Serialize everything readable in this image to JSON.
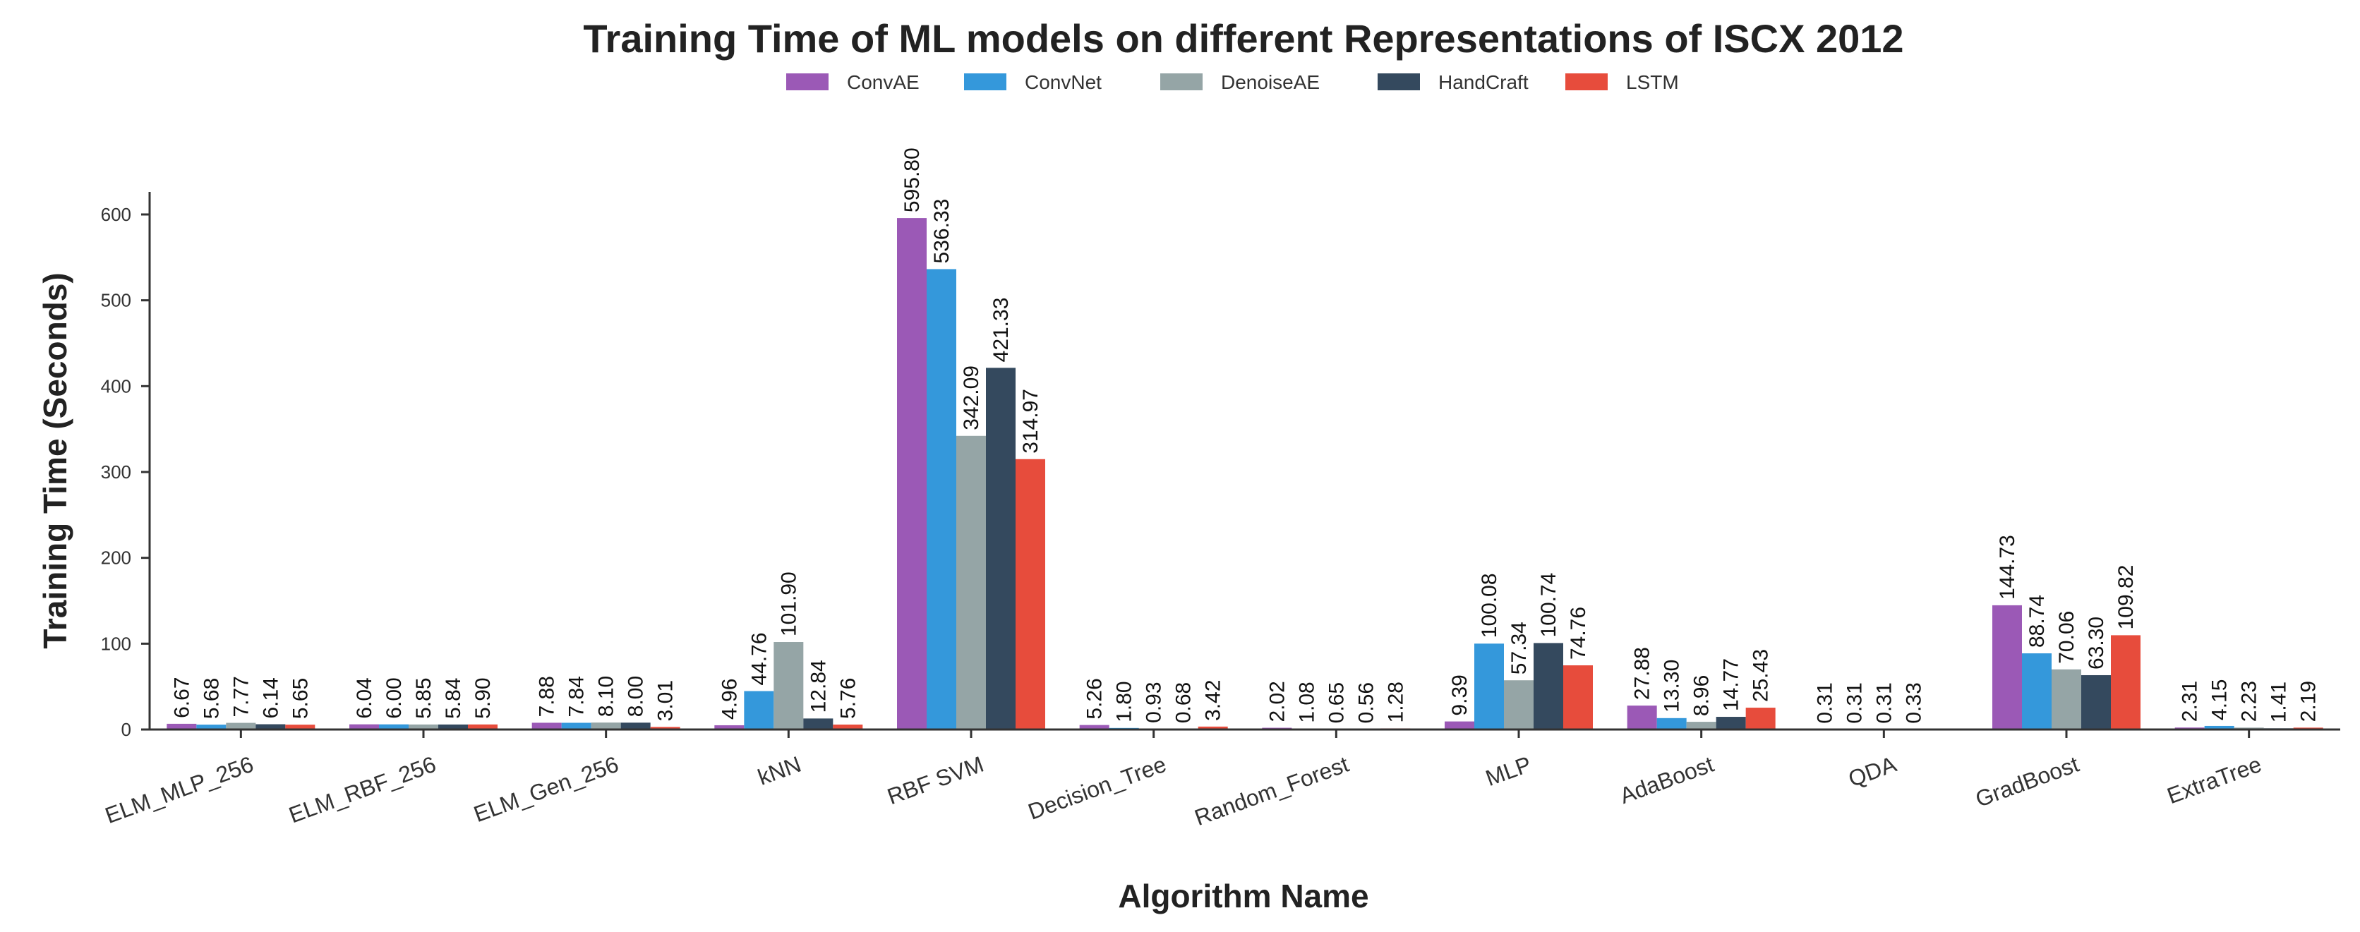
{
  "chart_data": {
    "type": "bar",
    "title": "Training Time of ML models on different Representations of ISCX 2012",
    "xlabel": "Algorithm Name",
    "ylabel": "Training Time (Seconds)",
    "ylim": [
      0,
      625
    ],
    "yticks": [
      0,
      100,
      200,
      300,
      400,
      500,
      600
    ],
    "legend_position": "top-center",
    "categories": [
      "ELM_MLP_256",
      "ELM_RBF_256",
      "ELM_Gen_256",
      "kNN",
      "RBF SVM",
      "Decision_Tree",
      "Random_Forest",
      "MLP",
      "AdaBoost",
      "QDA",
      "GradBoost",
      "ExtraTree"
    ],
    "series": [
      {
        "name": "ConvAE",
        "color": "#9b59b6",
        "values": [
          6.67,
          6.04,
          7.88,
          4.96,
          595.8,
          5.26,
          2.02,
          9.39,
          27.88,
          0.31,
          144.73,
          2.31
        ],
        "labels": [
          "6.67",
          "6.04",
          "7.88",
          "4.96",
          "595.80",
          "5.26",
          "2.02",
          "9.39",
          "27.88",
          "0.31",
          "144.73",
          "2.31"
        ]
      },
      {
        "name": "ConvNet",
        "color": "#3498db",
        "values": [
          5.68,
          6.0,
          7.84,
          44.76,
          536.33,
          1.8,
          1.08,
          100.08,
          13.3,
          0.31,
          88.74,
          4.15
        ],
        "labels": [
          "5.68",
          "6.00",
          "7.84",
          "44.76",
          "536.33",
          "1.80",
          "1.08",
          "100.08",
          "13.30",
          "0.31",
          "88.74",
          "4.15"
        ]
      },
      {
        "name": "DenoiseAE",
        "color": "#95a5a6",
        "values": [
          7.77,
          5.85,
          8.1,
          101.9,
          342.09,
          0.93,
          0.65,
          57.34,
          8.96,
          0.31,
          70.06,
          2.23
        ],
        "labels": [
          "7.77",
          "5.85",
          "8.10",
          "101.90",
          "342.09",
          "0.93",
          "0.65",
          "57.34",
          "8.96",
          "0.31",
          "70.06",
          "2.23"
        ]
      },
      {
        "name": "HandCraft",
        "color": "#34495e",
        "values": [
          6.14,
          5.84,
          8.0,
          12.84,
          421.33,
          0.68,
          0.56,
          100.74,
          14.77,
          0.33,
          63.3,
          1.41
        ],
        "labels": [
          "6.14",
          "5.84",
          "8.00",
          "12.84",
          "421.33",
          "0.68",
          "0.56",
          "100.74",
          "14.77",
          "0.33",
          "63.30",
          "1.41"
        ]
      },
      {
        "name": "LSTM",
        "color": "#e74c3c",
        "values": [
          5.65,
          5.9,
          3.01,
          5.76,
          314.97,
          3.42,
          1.28,
          74.76,
          25.43,
          0.0,
          109.82,
          2.19
        ],
        "labels": [
          "5.65",
          "5.90",
          "3.01",
          "5.76",
          "314.97",
          "3.42",
          "1.28",
          "74.76",
          "25.43",
          "",
          "109.82",
          "2.19"
        ]
      }
    ]
  }
}
